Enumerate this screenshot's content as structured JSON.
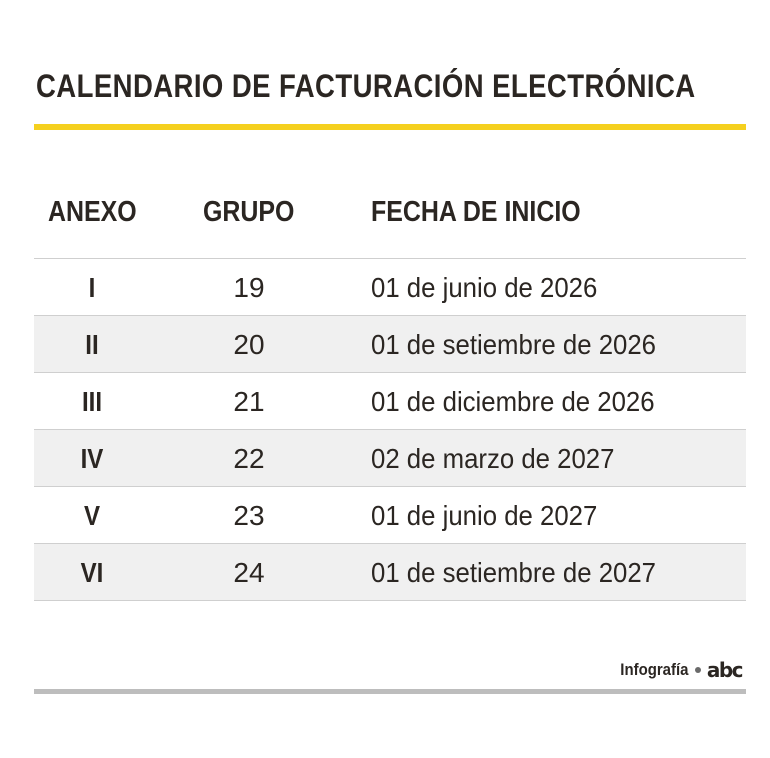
{
  "title": "CALENDARIO DE FACTURACIÓN ELECTRÓNICA",
  "colors": {
    "title_rule": "#f5d01e",
    "row_alt": "#f0f0f0",
    "bottom_rule": "#bdbdbd",
    "text": "#2b2622"
  },
  "table": {
    "headers": [
      "ANEXO",
      "GRUPO",
      "FECHA DE INICIO"
    ],
    "rows": [
      {
        "annex": "I",
        "group": "19",
        "date": "01 de junio de 2026"
      },
      {
        "annex": "II",
        "group": "20",
        "date": "01 de setiembre de 2026"
      },
      {
        "annex": "III",
        "group": "21",
        "date": "01 de diciembre de 2026"
      },
      {
        "annex": "IV",
        "group": "22",
        "date": "02 de marzo de 2027"
      },
      {
        "annex": "V",
        "group": "23",
        "date": "01 de junio de 2027"
      },
      {
        "annex": "VI",
        "group": "24",
        "date": "01 de setiembre de 2027"
      }
    ]
  },
  "footer": {
    "credit": "Infografía",
    "logo": "abc",
    "logo_icon": "abc-logo-icon"
  }
}
